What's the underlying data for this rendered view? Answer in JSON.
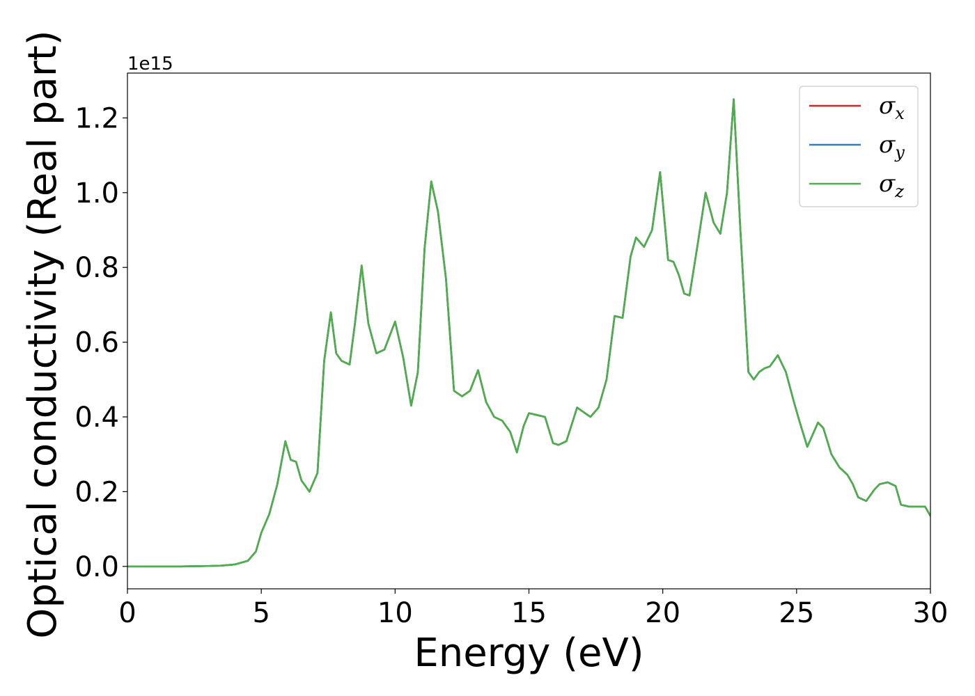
{
  "chart_data": {
    "type": "line",
    "xlabel": "Energy (eV)",
    "ylabel": "Optical conductivity (Real part)",
    "y_offset_label": "1e15",
    "y_scale": 1000000000000000.0,
    "xlim": [
      0,
      30
    ],
    "ylim": [
      -0.06,
      1.32
    ],
    "xticks": [
      0,
      5,
      10,
      15,
      20,
      25,
      30
    ],
    "xtick_labels": [
      "0",
      "5",
      "10",
      "15",
      "20",
      "25",
      "30"
    ],
    "yticks": [
      0.0,
      0.2,
      0.4,
      0.6,
      0.8,
      1.0,
      1.2
    ],
    "ytick_labels": [
      "0.0",
      "0.2",
      "0.4",
      "0.6",
      "0.8",
      "1.0",
      "1.2"
    ],
    "grid": false,
    "legend_position": "top-right",
    "x": [
      0,
      1,
      2,
      3,
      3.5,
      4,
      4.5,
      4.8,
      5.0,
      5.3,
      5.6,
      5.9,
      6.1,
      6.3,
      6.5,
      6.8,
      7.1,
      7.35,
      7.6,
      7.8,
      8.0,
      8.3,
      8.5,
      8.75,
      9.0,
      9.3,
      9.6,
      10.0,
      10.3,
      10.6,
      10.85,
      11.1,
      11.35,
      11.6,
      11.9,
      12.2,
      12.5,
      12.8,
      13.1,
      13.4,
      13.7,
      14.0,
      14.3,
      14.55,
      14.8,
      15.0,
      15.3,
      15.6,
      15.9,
      16.1,
      16.4,
      16.8,
      17.1,
      17.3,
      17.6,
      17.9,
      18.2,
      18.5,
      18.8,
      19.0,
      19.3,
      19.6,
      19.9,
      20.2,
      20.4,
      20.6,
      20.8,
      21.0,
      21.3,
      21.6,
      21.9,
      22.15,
      22.4,
      22.65,
      22.9,
      23.2,
      23.4,
      23.6,
      23.8,
      24.0,
      24.3,
      24.6,
      24.9,
      25.1,
      25.4,
      25.8,
      26.0,
      26.3,
      26.6,
      26.9,
      27.1,
      27.3,
      27.6,
      27.9,
      28.1,
      28.4,
      28.7,
      28.9,
      29.2,
      29.5,
      29.8,
      30.0
    ],
    "series": [
      {
        "name": "σx",
        "color": "#d62728",
        "values": [
          0.0,
          0.0,
          0.0,
          0.001,
          0.002,
          0.005,
          0.015,
          0.04,
          0.09,
          0.14,
          0.22,
          0.335,
          0.285,
          0.28,
          0.23,
          0.2,
          0.25,
          0.55,
          0.68,
          0.57,
          0.55,
          0.54,
          0.65,
          0.805,
          0.65,
          0.57,
          0.58,
          0.655,
          0.56,
          0.43,
          0.52,
          0.85,
          1.03,
          0.95,
          0.77,
          0.47,
          0.455,
          0.47,
          0.525,
          0.44,
          0.4,
          0.39,
          0.36,
          0.305,
          0.375,
          0.41,
          0.405,
          0.4,
          0.33,
          0.325,
          0.335,
          0.425,
          0.41,
          0.4,
          0.425,
          0.5,
          0.67,
          0.665,
          0.83,
          0.88,
          0.855,
          0.9,
          1.055,
          0.82,
          0.815,
          0.78,
          0.73,
          0.725,
          0.86,
          1.0,
          0.92,
          0.89,
          1.0,
          1.25,
          0.9,
          0.52,
          0.5,
          0.52,
          0.53,
          0.535,
          0.565,
          0.52,
          0.44,
          0.39,
          0.32,
          0.385,
          0.37,
          0.3,
          0.265,
          0.245,
          0.22,
          0.185,
          0.175,
          0.205,
          0.22,
          0.225,
          0.215,
          0.165,
          0.16,
          0.16,
          0.16,
          0.135
        ]
      },
      {
        "name": "σy",
        "color": "#377eb8",
        "values": [
          0.0,
          0.0,
          0.0,
          0.001,
          0.002,
          0.005,
          0.015,
          0.04,
          0.09,
          0.14,
          0.22,
          0.335,
          0.285,
          0.28,
          0.23,
          0.2,
          0.25,
          0.55,
          0.68,
          0.57,
          0.55,
          0.54,
          0.65,
          0.805,
          0.65,
          0.57,
          0.58,
          0.655,
          0.56,
          0.43,
          0.52,
          0.85,
          1.03,
          0.95,
          0.77,
          0.47,
          0.455,
          0.47,
          0.525,
          0.44,
          0.4,
          0.39,
          0.36,
          0.305,
          0.375,
          0.41,
          0.405,
          0.4,
          0.33,
          0.325,
          0.335,
          0.425,
          0.41,
          0.4,
          0.425,
          0.5,
          0.67,
          0.665,
          0.83,
          0.88,
          0.855,
          0.9,
          1.055,
          0.82,
          0.815,
          0.78,
          0.73,
          0.725,
          0.86,
          1.0,
          0.92,
          0.89,
          1.0,
          1.25,
          0.9,
          0.52,
          0.5,
          0.52,
          0.53,
          0.535,
          0.565,
          0.52,
          0.44,
          0.39,
          0.32,
          0.385,
          0.37,
          0.3,
          0.265,
          0.245,
          0.22,
          0.185,
          0.175,
          0.205,
          0.22,
          0.225,
          0.215,
          0.165,
          0.16,
          0.16,
          0.16,
          0.135
        ]
      },
      {
        "name": "σz",
        "color": "#4daf4a",
        "values": [
          0.0,
          0.0,
          0.0,
          0.001,
          0.002,
          0.005,
          0.015,
          0.04,
          0.09,
          0.14,
          0.22,
          0.335,
          0.285,
          0.28,
          0.23,
          0.2,
          0.25,
          0.55,
          0.68,
          0.57,
          0.55,
          0.54,
          0.65,
          0.805,
          0.65,
          0.57,
          0.58,
          0.655,
          0.56,
          0.43,
          0.52,
          0.85,
          1.03,
          0.95,
          0.77,
          0.47,
          0.455,
          0.47,
          0.525,
          0.44,
          0.4,
          0.39,
          0.36,
          0.305,
          0.375,
          0.41,
          0.405,
          0.4,
          0.33,
          0.325,
          0.335,
          0.425,
          0.41,
          0.4,
          0.425,
          0.5,
          0.67,
          0.665,
          0.83,
          0.88,
          0.855,
          0.9,
          1.055,
          0.82,
          0.815,
          0.78,
          0.73,
          0.725,
          0.86,
          1.0,
          0.92,
          0.89,
          1.0,
          1.25,
          0.9,
          0.52,
          0.5,
          0.52,
          0.53,
          0.535,
          0.565,
          0.52,
          0.44,
          0.39,
          0.32,
          0.385,
          0.37,
          0.3,
          0.265,
          0.245,
          0.22,
          0.185,
          0.175,
          0.205,
          0.22,
          0.225,
          0.215,
          0.165,
          0.16,
          0.16,
          0.16,
          0.135
        ]
      }
    ],
    "legend": [
      {
        "symbol": "σ",
        "sub": "x"
      },
      {
        "symbol": "σ",
        "sub": "y"
      },
      {
        "symbol": "σ",
        "sub": "z"
      }
    ]
  }
}
